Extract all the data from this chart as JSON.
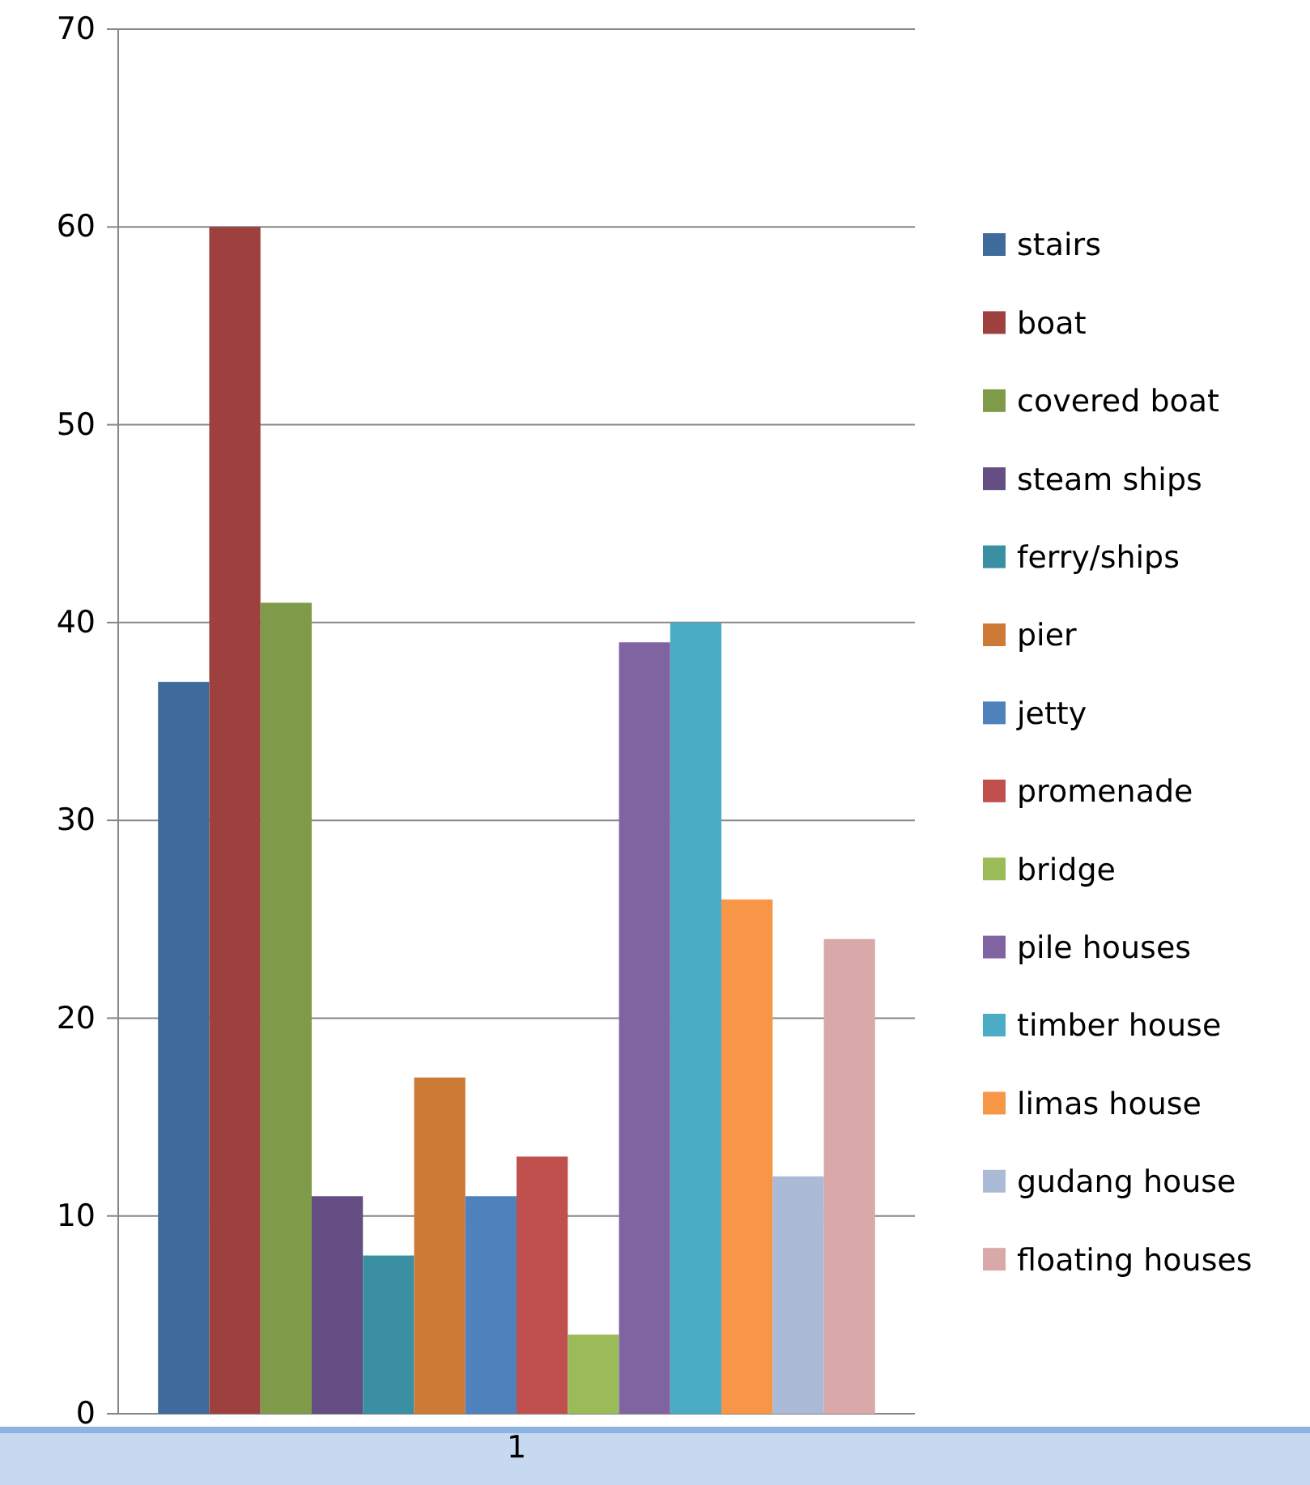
{
  "chart_data": {
    "type": "bar",
    "categories": [
      "1"
    ],
    "series": [
      {
        "name": "stairs",
        "color": "#3e6a9c",
        "values": [
          37
        ]
      },
      {
        "name": "boat",
        "color": "#9e413e",
        "values": [
          60
        ]
      },
      {
        "name": "covered boat",
        "color": "#7f9a48",
        "values": [
          41
        ]
      },
      {
        "name": "steam ships",
        "color": "#654e83",
        "values": [
          11
        ]
      },
      {
        "name": "ferry/ships",
        "color": "#3a8fa3",
        "values": [
          8
        ]
      },
      {
        "name": "pier",
        "color": "#cc7a36",
        "values": [
          17
        ]
      },
      {
        "name": "jetty",
        "color": "#4f81bd",
        "values": [
          11
        ]
      },
      {
        "name": "promenade",
        "color": "#c0504d",
        "values": [
          13
        ]
      },
      {
        "name": "bridge",
        "color": "#9bbb59",
        "values": [
          4
        ]
      },
      {
        "name": "pile houses",
        "color": "#8064a2",
        "values": [
          39
        ]
      },
      {
        "name": "timber house",
        "color": "#4bacc6",
        "values": [
          40
        ]
      },
      {
        "name": "limas house",
        "color": "#f79646",
        "values": [
          26
        ]
      },
      {
        "name": "gudang house",
        "color": "#aabad7",
        "values": [
          12
        ]
      },
      {
        "name": "floating houses",
        "color": "#d9a8a8",
        "values": [
          24
        ]
      }
    ],
    "ylim": [
      0,
      70
    ],
    "yticks": [
      0,
      10,
      20,
      30,
      40,
      50,
      60,
      70
    ],
    "grid": "y",
    "legend": "right"
  }
}
